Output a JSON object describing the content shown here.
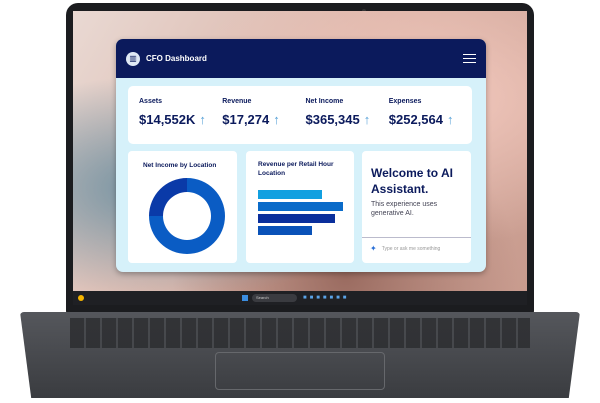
{
  "app": {
    "title": "CFO Dashboard",
    "logo_icon": "chart-icon",
    "menu_icon": "hamburger-icon"
  },
  "kpis": [
    {
      "label": "Assets",
      "value": "$14,552K",
      "trend": "up"
    },
    {
      "label": "Revenue",
      "value": "$17,274",
      "trend": "up"
    },
    {
      "label": "Net Income",
      "value": "$365,345",
      "trend": "up"
    },
    {
      "label": "Expenses",
      "value": "$252,564",
      "trend": "up"
    }
  ],
  "arrow": "↑",
  "cards": {
    "net_income": {
      "title": "Net Income by Location"
    },
    "revenue": {
      "title": "Revenue per Retail Hour Location"
    },
    "assistant": {
      "title": "Welcome to AI Assistant.",
      "subtitle": "This experience uses generative AI.",
      "placeholder": "Type or ask me something"
    }
  },
  "chart_data": [
    {
      "type": "pie",
      "title": "Net Income by Location",
      "donut": true,
      "values": [
        75,
        25
      ],
      "colors": [
        "#0a5cc4",
        "#0a3aa8"
      ]
    },
    {
      "type": "bar",
      "orientation": "horizontal",
      "title": "Revenue per Retail Hour Location",
      "values": [
        0.75,
        1.0,
        0.91,
        0.63
      ],
      "colors": [
        "#12a0e0",
        "#0a6bc9",
        "#0a2f9c",
        "#0a52b8"
      ]
    }
  ],
  "taskbar": {
    "search": "Search"
  }
}
